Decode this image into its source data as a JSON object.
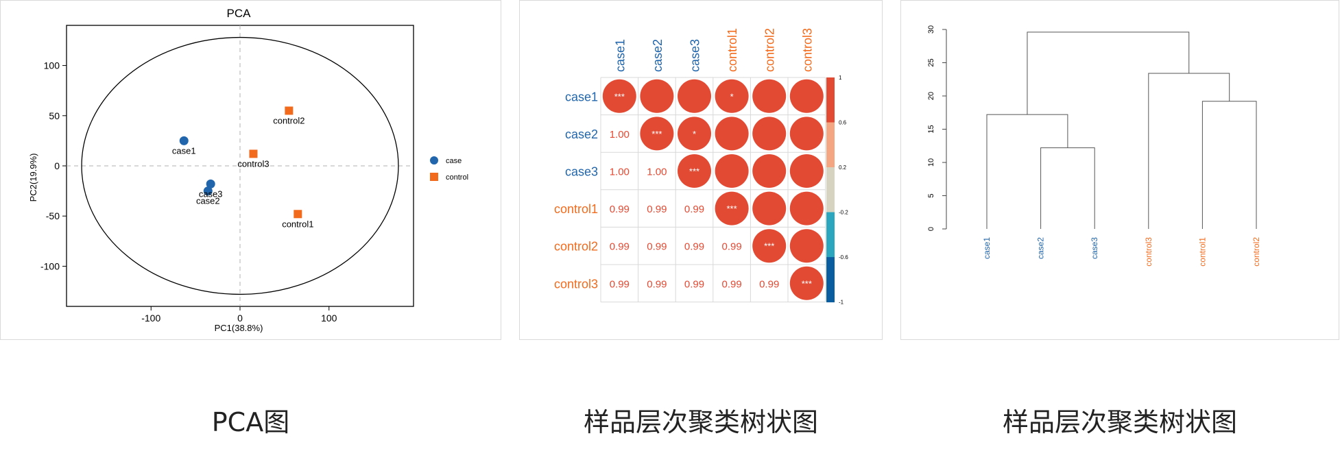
{
  "colors": {
    "case": "#2166ac",
    "control": "#f26b1d",
    "corr": "#e34a33",
    "axis": "#000000",
    "grid": "#b0b0b0"
  },
  "captions": {
    "pca": "PCA图",
    "corr": "样品层次聚类树状图",
    "dendro": "样品层次聚类树状图"
  },
  "chart_data": [
    {
      "type": "scatter",
      "title": "PCA",
      "xlabel": "PC1(38.8%)",
      "ylabel": "PC2(19.9%)",
      "xlim": [
        -195,
        195
      ],
      "ylim": [
        -140,
        140
      ],
      "xticks": [
        -100,
        0,
        100
      ],
      "yticks": [
        -100,
        -50,
        0,
        50,
        100
      ],
      "grid": false,
      "legend_position": "right",
      "ellipse": {
        "rx": 178,
        "ry": 128
      },
      "series": [
        {
          "name": "case",
          "marker": "circle",
          "color": "#2166ac",
          "points": [
            {
              "label": "case1",
              "x": -63,
              "y": 25
            },
            {
              "label": "case2",
              "x": -36,
              "y": -25
            },
            {
              "label": "case3",
              "x": -33,
              "y": -18
            }
          ]
        },
        {
          "name": "control",
          "marker": "square",
          "color": "#f26b1d",
          "points": [
            {
              "label": "control1",
              "x": 65,
              "y": -48
            },
            {
              "label": "control2",
              "x": 55,
              "y": 55
            },
            {
              "label": "control3",
              "x": 15,
              "y": 12
            }
          ]
        }
      ]
    },
    {
      "type": "heatmap",
      "samples": [
        "case1",
        "case2",
        "case3",
        "control1",
        "control2",
        "control3"
      ],
      "groups": [
        "case",
        "case",
        "case",
        "control",
        "control",
        "control"
      ],
      "lower_values": [
        [
          null,
          null,
          null,
          null,
          null,
          null
        ],
        [
          "1.00",
          null,
          null,
          null,
          null,
          null
        ],
        [
          "1.00",
          "1.00",
          null,
          null,
          null,
          null
        ],
        [
          "0.99",
          "0.99",
          "0.99",
          null,
          null,
          null
        ],
        [
          "0.99",
          "0.99",
          "0.99",
          "0.99",
          null,
          null
        ],
        [
          "0.99",
          "0.99",
          "0.99",
          "0.99",
          "0.99",
          null
        ]
      ],
      "upper_significance": [
        [
          "***",
          "",
          "",
          "*",
          "",
          ""
        ],
        [
          null,
          "***",
          "*",
          "",
          "",
          ""
        ],
        [
          null,
          null,
          "***",
          "",
          "",
          ""
        ],
        [
          null,
          null,
          null,
          "***",
          "",
          ""
        ],
        [
          null,
          null,
          null,
          null,
          "***",
          ""
        ],
        [
          null,
          null,
          null,
          null,
          null,
          "***"
        ]
      ],
      "colorbar": {
        "ticks": [
          "1",
          "0.6",
          "0.2",
          "-0.2",
          "-0.6",
          "-1"
        ],
        "colors": [
          "#e34a33",
          "#f4a582",
          "#d6d3c1",
          "#2ba6be",
          "#0a5ea0"
        ]
      }
    },
    {
      "type": "dendrogram",
      "leaves": [
        "case1",
        "case2",
        "case3",
        "control3",
        "control1",
        "control2"
      ],
      "leaf_groups": [
        "case",
        "case",
        "case",
        "control",
        "control",
        "control"
      ],
      "ylim": [
        0,
        30
      ],
      "yticks": [
        0,
        5,
        10,
        15,
        20,
        25,
        30
      ],
      "merges": [
        {
          "left": 1,
          "right": 2,
          "height": 12.2
        },
        {
          "left": 0,
          "right": 6,
          "height": 17.2
        },
        {
          "left": 4,
          "right": 5,
          "height": 19.2
        },
        {
          "left": 3,
          "right": 8,
          "height": 23.4
        },
        {
          "left": 7,
          "right": 9,
          "height": 29.6
        }
      ]
    }
  ]
}
